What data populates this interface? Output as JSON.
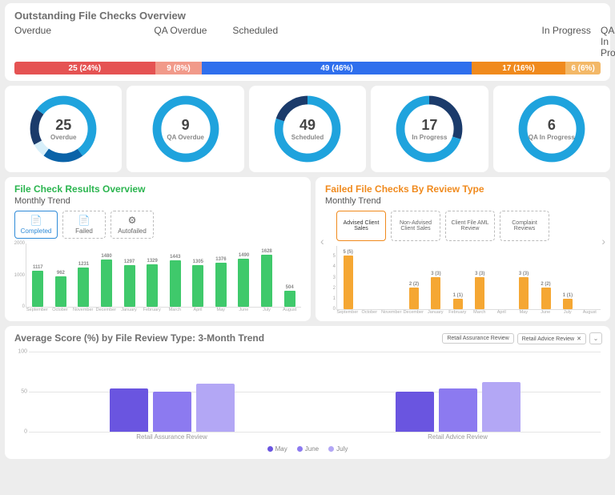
{
  "overview": {
    "title": "Outstanding File Checks Overview",
    "categories": [
      {
        "label": "Overdue",
        "value": 25,
        "pct": 24,
        "color": "#e55353",
        "labelWidth": 178
      },
      {
        "label": "QA Overdue",
        "value": 9,
        "pct": 8,
        "color": "#f19a8a",
        "labelWidth": 100
      },
      {
        "label": "Scheduled",
        "value": 49,
        "pct": 46,
        "color": "#2f6fed",
        "labelWidth": 394
      },
      {
        "label": "In Progress",
        "value": 17,
        "pct": 16,
        "color": "#f08a1d",
        "labelWidth": 75
      },
      {
        "label": "QA In Progre..",
        "value": 6,
        "pct": 6,
        "color": "#f3b867",
        "labelWidth": 0
      }
    ]
  },
  "donuts": [
    {
      "value": 25,
      "label": "Overdue",
      "segments": [
        {
          "color": "#1fa3dd",
          "pct": 40
        },
        {
          "color": "#0b63a8",
          "pct": 20
        },
        {
          "color": "#d7effa",
          "pct": 7
        },
        {
          "color": "#1b3b6b",
          "pct": 18
        },
        {
          "color": "#1fa3dd",
          "pct": 15
        }
      ]
    },
    {
      "value": 9,
      "label": "QA Overdue",
      "segments": [
        {
          "color": "#1fa3dd",
          "pct": 100
        }
      ]
    },
    {
      "value": 49,
      "label": "Scheduled",
      "segments": [
        {
          "color": "#1fa3dd",
          "pct": 80
        },
        {
          "color": "#1b3b6b",
          "pct": 20
        }
      ]
    },
    {
      "value": 17,
      "label": "In Progress",
      "segments": [
        {
          "color": "#1b3b6b",
          "pct": 30
        },
        {
          "color": "#1fa3dd",
          "pct": 70
        }
      ]
    },
    {
      "value": 6,
      "label": "QA In Progress",
      "segments": [
        {
          "color": "#1fa3dd",
          "pct": 100
        }
      ]
    }
  ],
  "results": {
    "title": "File Check Results Overview",
    "subtitle": "Monthly Trend",
    "tabs": [
      {
        "icon": "📄",
        "label": "Completed",
        "active": true
      },
      {
        "icon": "📄",
        "label": "Failed",
        "active": false
      },
      {
        "icon": "⚙",
        "label": "Autofailed",
        "active": false
      }
    ],
    "ymax": 2000,
    "yticks": [
      2000,
      1000,
      0
    ],
    "barColor": "#3fc96b",
    "months": [
      "September",
      "October",
      "November",
      "December",
      "January",
      "February",
      "March",
      "April",
      "May",
      "June",
      "July",
      "August"
    ],
    "values": [
      1117,
      962,
      1231,
      1480,
      1297,
      1329,
      1443,
      1305,
      1376,
      1490,
      1628,
      504
    ]
  },
  "failed": {
    "title": "Failed File Checks By Review Type",
    "subtitle": "Monthly Trend",
    "tabs": [
      {
        "label": "Advised Client Sales",
        "active": true
      },
      {
        "label": "Non-Advised Client Sales",
        "active": false
      },
      {
        "label": "Client File AML Review",
        "active": false
      },
      {
        "label": "Complaint Reviews",
        "active": false
      }
    ],
    "ymax": 6,
    "yticks": [
      5,
      4,
      3,
      2,
      1,
      0
    ],
    "barColor": "#f5a733",
    "months": [
      "September",
      "October",
      "November",
      "December",
      "January",
      "February",
      "March",
      "April",
      "May",
      "June",
      "July",
      "August"
    ],
    "values": [
      5,
      null,
      null,
      2,
      3,
      1,
      3,
      null,
      3,
      2,
      1,
      null
    ],
    "valueLabels": [
      "5 (5)",
      "",
      "",
      "2 (2)",
      "3 (3)",
      "1 (1)",
      "3 (3)",
      "",
      "3 (3)",
      "2 (2)",
      "1 (1)",
      ""
    ]
  },
  "bottom": {
    "title": "Average Score (%) by File Review Type: 3-Month Trend",
    "chips": [
      "Retail Assurance Review",
      "Retail Advice Review"
    ],
    "ymax": 100,
    "yticks": [
      100,
      50,
      0
    ],
    "groups": [
      {
        "label": "Retail Assurance Review",
        "values": [
          54,
          50,
          60
        ]
      },
      {
        "label": "Retail Advice Review",
        "values": [
          50,
          54,
          62
        ]
      }
    ],
    "seriesColors": [
      "#6a55e0",
      "#8c7af0",
      "#b3a7f5"
    ],
    "legend": [
      "May",
      "June",
      "July"
    ]
  }
}
